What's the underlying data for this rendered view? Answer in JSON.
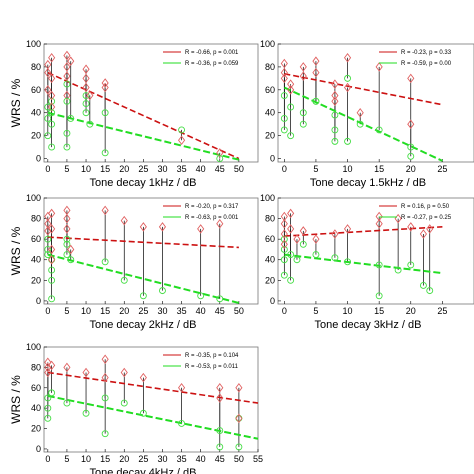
{
  "colors": {
    "diamond": "#e06060",
    "circle": "#44dd44",
    "red_line": "#cc1111",
    "green_line": "#22dd22",
    "stem": "#000000",
    "grid_box": "#777777"
  },
  "chart_data": [
    {
      "type": "scatter",
      "xlabel": "Tone decay 1kHz / dB",
      "ylabel": "WRS / %",
      "xlim": [
        -1,
        55
      ],
      "ylim": [
        -3,
        100
      ],
      "xticks": [
        0,
        5,
        10,
        15,
        20,
        25,
        30,
        35,
        40,
        45,
        50
      ],
      "yticks": [
        0,
        20,
        40,
        60,
        80,
        100
      ],
      "legend": [
        "R = -0.66, p = 0.001",
        "R = -0.36, p = 0.059"
      ],
      "legend_position": "top-right",
      "fit_red": {
        "x": [
          0,
          50
        ],
        "y": [
          75,
          0
        ]
      },
      "fit_green": {
        "x": [
          0,
          50
        ],
        "y": [
          40,
          -1
        ]
      },
      "pairs": [
        [
          0,
          82,
          45
        ],
        [
          0,
          75,
          35
        ],
        [
          0,
          60,
          20
        ],
        [
          1,
          88,
          50
        ],
        [
          1,
          70,
          30
        ],
        [
          1,
          55,
          10
        ],
        [
          1,
          45,
          40
        ],
        [
          5,
          90,
          65
        ],
        [
          5,
          80,
          22
        ],
        [
          5,
          72,
          10
        ],
        [
          5,
          55,
          50
        ],
        [
          6,
          85,
          35
        ],
        [
          10,
          78,
          48
        ],
        [
          10,
          70,
          55
        ],
        [
          10,
          62,
          40
        ],
        [
          11,
          55,
          30
        ],
        [
          15,
          66,
          40
        ],
        [
          15,
          62,
          5
        ],
        [
          35,
          16,
          25
        ],
        [
          45,
          5,
          0
        ]
      ]
    },
    {
      "type": "scatter",
      "xlabel": "Tone decay 1.5kHz / dB",
      "ylabel": "",
      "xlim": [
        -1,
        30
      ],
      "ylim": [
        -3,
        100
      ],
      "xticks": [
        0,
        5,
        10,
        15,
        20,
        25
      ],
      "yticks": [
        0,
        20,
        40,
        60,
        80,
        100
      ],
      "legend": [
        "R = -0.23, p = 0.33",
        "R = -0.59, p = 0.00"
      ],
      "legend_position": "top-right",
      "fit_red": {
        "x": [
          0,
          25
        ],
        "y": [
          74,
          47
        ]
      },
      "fit_green": {
        "x": [
          0,
          25
        ],
        "y": [
          62,
          -2
        ]
      },
      "pairs": [
        [
          0,
          83,
          55
        ],
        [
          0,
          75,
          35
        ],
        [
          0,
          70,
          25
        ],
        [
          1,
          65,
          45
        ],
        [
          1,
          60,
          20
        ],
        [
          3,
          80,
          40
        ],
        [
          3,
          72,
          30
        ],
        [
          5,
          85,
          50
        ],
        [
          5,
          75,
          50
        ],
        [
          8,
          65,
          38
        ],
        [
          8,
          55,
          25
        ],
        [
          8,
          50,
          15
        ],
        [
          10,
          88,
          70
        ],
        [
          10,
          62,
          15
        ],
        [
          12,
          40,
          30
        ],
        [
          15,
          80,
          25
        ],
        [
          20,
          70,
          2
        ],
        [
          20,
          30,
          10
        ]
      ]
    },
    {
      "type": "scatter",
      "xlabel": "Tone decay 2kHz / dB",
      "ylabel": "WRS / %",
      "xlim": [
        -1,
        55
      ],
      "ylim": [
        -3,
        100
      ],
      "xticks": [
        0,
        5,
        10,
        15,
        20,
        25,
        30,
        35,
        40,
        45,
        50
      ],
      "yticks": [
        0,
        20,
        40,
        60,
        80,
        100
      ],
      "legend": [
        "R = -0.20, p = 0.317",
        "R = -0.63, p = 0.001"
      ],
      "legend_position": "top-right",
      "fit_red": {
        "x": [
          0,
          50
        ],
        "y": [
          62,
          52
        ]
      },
      "fit_green": {
        "x": [
          0,
          50
        ],
        "y": [
          45,
          -2
        ]
      },
      "pairs": [
        [
          0,
          82,
          60
        ],
        [
          0,
          75,
          50
        ],
        [
          0,
          68,
          45
        ],
        [
          1,
          85,
          40
        ],
        [
          1,
          70,
          30
        ],
        [
          1,
          50,
          20
        ],
        [
          1,
          40,
          2
        ],
        [
          5,
          88,
          60
        ],
        [
          5,
          80,
          55
        ],
        [
          5,
          70,
          45
        ],
        [
          6,
          50,
          40
        ],
        [
          15,
          88,
          38
        ],
        [
          20,
          78,
          20
        ],
        [
          25,
          72,
          5
        ],
        [
          30,
          72,
          10
        ],
        [
          40,
          70,
          5
        ],
        [
          45,
          75,
          2
        ]
      ]
    },
    {
      "type": "scatter",
      "xlabel": "Tone decay 3kHz / dB",
      "ylabel": "",
      "xlim": [
        -1,
        30
      ],
      "ylim": [
        -3,
        100
      ],
      "xticks": [
        0,
        5,
        10,
        15,
        20,
        25
      ],
      "yticks": [
        0,
        20,
        40,
        60,
        80,
        100
      ],
      "legend": [
        "R = 0.16, p = 0.50",
        "R = -0.27, p = 0.25"
      ],
      "legend_position": "top-right",
      "fit_red": {
        "x": [
          0,
          25
        ],
        "y": [
          63,
          72
        ]
      },
      "fit_green": {
        "x": [
          0,
          25
        ],
        "y": [
          45,
          27
        ]
      },
      "pairs": [
        [
          0,
          82,
          60
        ],
        [
          0,
          75,
          50
        ],
        [
          0,
          65,
          40
        ],
        [
          0,
          55,
          25
        ],
        [
          1,
          85,
          45
        ],
        [
          1,
          70,
          20
        ],
        [
          2,
          60,
          40
        ],
        [
          3,
          68,
          55
        ],
        [
          5,
          60,
          45
        ],
        [
          8,
          65,
          42
        ],
        [
          10,
          70,
          38
        ],
        [
          15,
          82,
          5
        ],
        [
          15,
          75,
          35
        ],
        [
          18,
          80,
          30
        ],
        [
          20,
          72,
          35
        ],
        [
          22,
          65,
          15
        ],
        [
          23,
          70,
          10
        ]
      ]
    },
    {
      "type": "scatter",
      "xlabel": "Tone decay 4kHz / dB",
      "ylabel": "WRS / %",
      "xlim": [
        -1,
        55
      ],
      "ylim": [
        -3,
        100
      ],
      "xticks": [
        0,
        5,
        10,
        15,
        20,
        25,
        30,
        35,
        40,
        45,
        50,
        55
      ],
      "yticks": [
        0,
        20,
        40,
        60,
        80,
        100
      ],
      "legend": [
        "R = -0.35, p = 0.104",
        "R = -0.53, p = 0.011"
      ],
      "legend_position": "top-right",
      "fit_red": {
        "x": [
          0,
          55
        ],
        "y": [
          75,
          45
        ]
      },
      "fit_green": {
        "x": [
          0,
          55
        ],
        "y": [
          52,
          10
        ]
      },
      "pairs": [
        [
          0,
          85,
          50
        ],
        [
          0,
          80,
          40
        ],
        [
          0,
          75,
          30
        ],
        [
          1,
          82,
          55
        ],
        [
          5,
          80,
          45
        ],
        [
          10,
          75,
          35
        ],
        [
          15,
          88,
          50
        ],
        [
          15,
          70,
          15
        ],
        [
          20,
          75,
          45
        ],
        [
          25,
          70,
          35
        ],
        [
          35,
          60,
          25
        ],
        [
          45,
          60,
          18
        ],
        [
          45,
          50,
          2
        ],
        [
          50,
          60,
          30
        ],
        [
          50,
          30,
          2
        ]
      ]
    }
  ]
}
